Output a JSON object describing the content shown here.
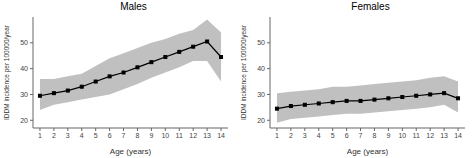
{
  "chart_data": [
    {
      "type": "line",
      "title": "Males",
      "x_label": "Age (years)",
      "y_label": "IDDM incidence per 100000/year",
      "x": [
        1,
        2,
        3,
        4,
        5,
        6,
        7,
        8,
        9,
        10,
        11,
        12,
        13,
        14
      ],
      "values": [
        29.5,
        30.5,
        31.5,
        33,
        35,
        37,
        38.5,
        40.5,
        42.5,
        44.5,
        46.5,
        48.5,
        50.5,
        44.5
      ],
      "ci_lower": [
        24,
        26,
        27,
        28,
        29,
        30,
        32,
        34,
        36.5,
        38.5,
        40.5,
        43,
        43,
        35
      ],
      "ci_upper": [
        36,
        36,
        37,
        38,
        41,
        44,
        46,
        48,
        50,
        51.5,
        53.5,
        55,
        59,
        54
      ],
      "color": "#000000",
      "marker": "square",
      "xlim": [
        0.5,
        14.5
      ],
      "xticks": [
        1,
        2,
        3,
        4,
        5,
        6,
        7,
        8,
        9,
        10,
        11,
        12,
        13,
        14
      ],
      "ylim": [
        17,
        60
      ],
      "yticks": [
        20,
        30,
        40,
        50
      ]
    },
    {
      "type": "line",
      "title": "Females",
      "x_label": "Age (years)",
      "y_label": "IDDM incidence per 100000/year",
      "x": [
        1,
        2,
        3,
        4,
        5,
        6,
        7,
        8,
        9,
        10,
        11,
        12,
        13,
        14
      ],
      "values": [
        24.5,
        25.5,
        26,
        26.5,
        27,
        27.5,
        27.5,
        28,
        28.5,
        29,
        29.5,
        30,
        30.5,
        28.5
      ],
      "ci_lower": [
        19,
        20.5,
        21,
        21.5,
        22,
        22.5,
        22.5,
        23,
        23.5,
        24,
        24.5,
        25,
        26,
        23
      ],
      "ci_upper": [
        30.5,
        31,
        31.5,
        32,
        33,
        33,
        33.5,
        34,
        34.5,
        35,
        35.5,
        36.5,
        37,
        35
      ],
      "color": "#000000",
      "marker": "square",
      "xlim": [
        0.5,
        14.5
      ],
      "xticks": [
        1,
        2,
        3,
        4,
        5,
        6,
        7,
        8,
        9,
        10,
        11,
        12,
        13,
        14
      ],
      "ylim": [
        17,
        60
      ],
      "yticks": [
        20,
        30,
        40,
        50
      ]
    }
  ]
}
